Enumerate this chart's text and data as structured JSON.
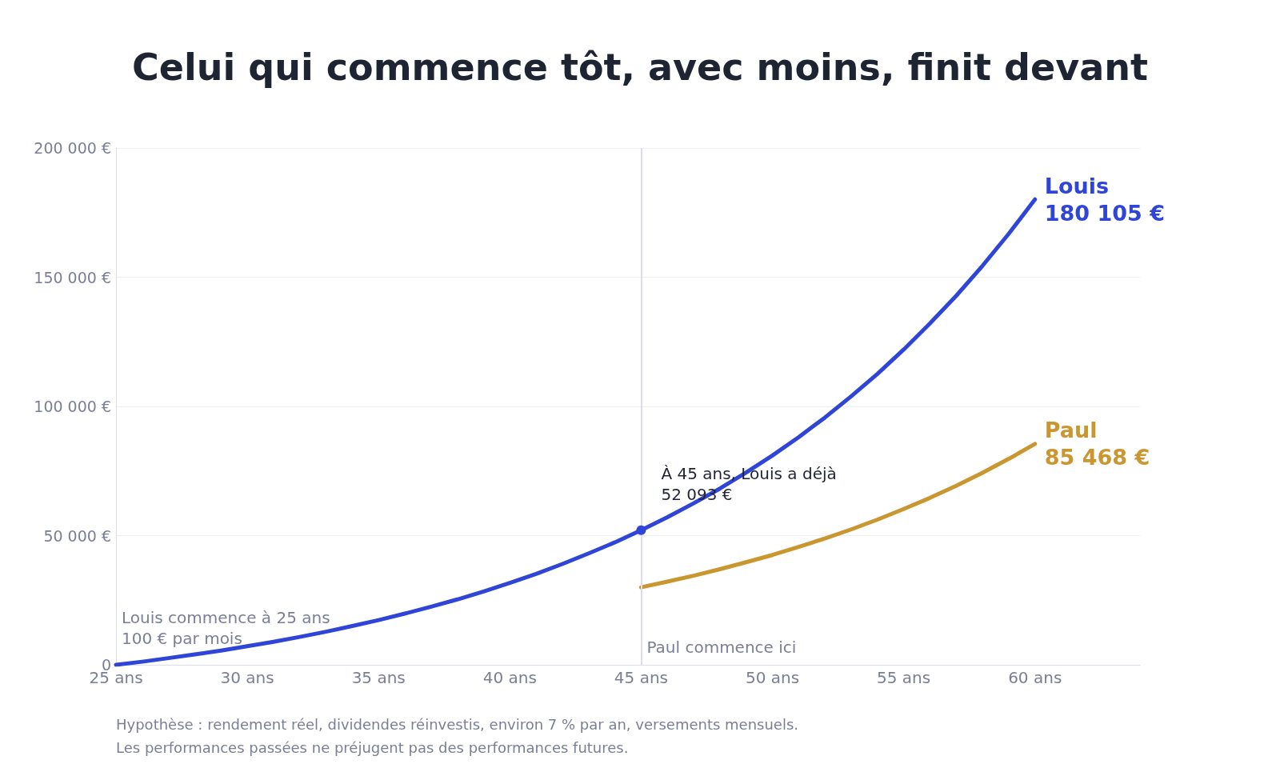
{
  "chart_data": {
    "type": "line",
    "title": "Celui qui commence tôt, avec moins, finit devant",
    "xlim": [
      25,
      64
    ],
    "xticks": [
      {
        "value": 25,
        "label": "25 ans"
      },
      {
        "value": 30,
        "label": "30 ans"
      },
      {
        "value": 35,
        "label": "35 ans"
      },
      {
        "value": 40,
        "label": "40 ans"
      },
      {
        "value": 45,
        "label": "45 ans"
      },
      {
        "value": 50,
        "label": "50 ans"
      },
      {
        "value": 55,
        "label": "55 ans"
      },
      {
        "value": 60,
        "label": "60 ans"
      }
    ],
    "ylim": [
      0,
      200000
    ],
    "yticks": [
      {
        "value": 0,
        "label": "0"
      },
      {
        "value": 50000,
        "label": "50 000 €"
      },
      {
        "value": 100000,
        "label": "100 000 €"
      },
      {
        "value": 150000,
        "label": "150 000 €"
      },
      {
        "value": 200000,
        "label": "200 000 €"
      }
    ],
    "grid": "y",
    "legend": false,
    "marker": "none",
    "line_style": "solid",
    "series": [
      {
        "name": "Louis",
        "color": "#2f45d8",
        "x": [
          25,
          26,
          27,
          28,
          29,
          30,
          31,
          32,
          33,
          34,
          35,
          36,
          37,
          38,
          39,
          40,
          41,
          42,
          43,
          44,
          45,
          46,
          47,
          48,
          49,
          50,
          51,
          52,
          53,
          54,
          55,
          56,
          57,
          58,
          59,
          60
        ],
        "values": [
          0,
          1200,
          2600,
          4000,
          5500,
          7200,
          8900,
          10800,
          12800,
          15000,
          17300,
          19800,
          22500,
          25300,
          28400,
          31700,
          35200,
          39000,
          43100,
          47400,
          52093,
          57100,
          62500,
          68200,
          74400,
          81000,
          88100,
          95700,
          103900,
          112600,
          122000,
          132100,
          142800,
          154400,
          166800,
          180105
        ],
        "value_labels": [
          null,
          null,
          null,
          null,
          null,
          null,
          null,
          null,
          null,
          null,
          null,
          null,
          null,
          null,
          null,
          null,
          null,
          null,
          null,
          null,
          null,
          null,
          null,
          null,
          null,
          null,
          null,
          null,
          null,
          null,
          null,
          null,
          null,
          null,
          null,
          "180 105 €"
        ]
      },
      {
        "name": "Paul",
        "color": "#c9962f",
        "x": [
          45,
          46,
          47,
          48,
          49,
          50,
          51,
          52,
          53,
          54,
          55,
          56,
          57,
          58,
          59,
          60
        ],
        "values": [
          30000,
          32200,
          34500,
          37000,
          39700,
          42500,
          45600,
          48900,
          52400,
          56200,
          60300,
          64600,
          69300,
          74300,
          79700,
          85468
        ],
        "value_labels": [
          null,
          null,
          null,
          null,
          null,
          null,
          null,
          null,
          null,
          null,
          null,
          null,
          null,
          null,
          null,
          "85 468 €"
        ]
      }
    ],
    "ref_lines": [
      {
        "axis": "x",
        "value": 45,
        "label": "Paul commence ici",
        "color": "#dcdcec"
      }
    ],
    "annotations": [
      {
        "text": "Louis commence à 25 ans\n100 € par mois",
        "x": 25,
        "y": 0
      },
      {
        "text": "À 45 ans, Louis a déjà\n52 093 €",
        "x": 45,
        "y": 52093
      },
      "Hypothèse : rendement réel, dividendes réinvestis, environ 7 % par an, versements mensuels.",
      "Les performances passées ne préjugent pas des performances futures."
    ]
  }
}
